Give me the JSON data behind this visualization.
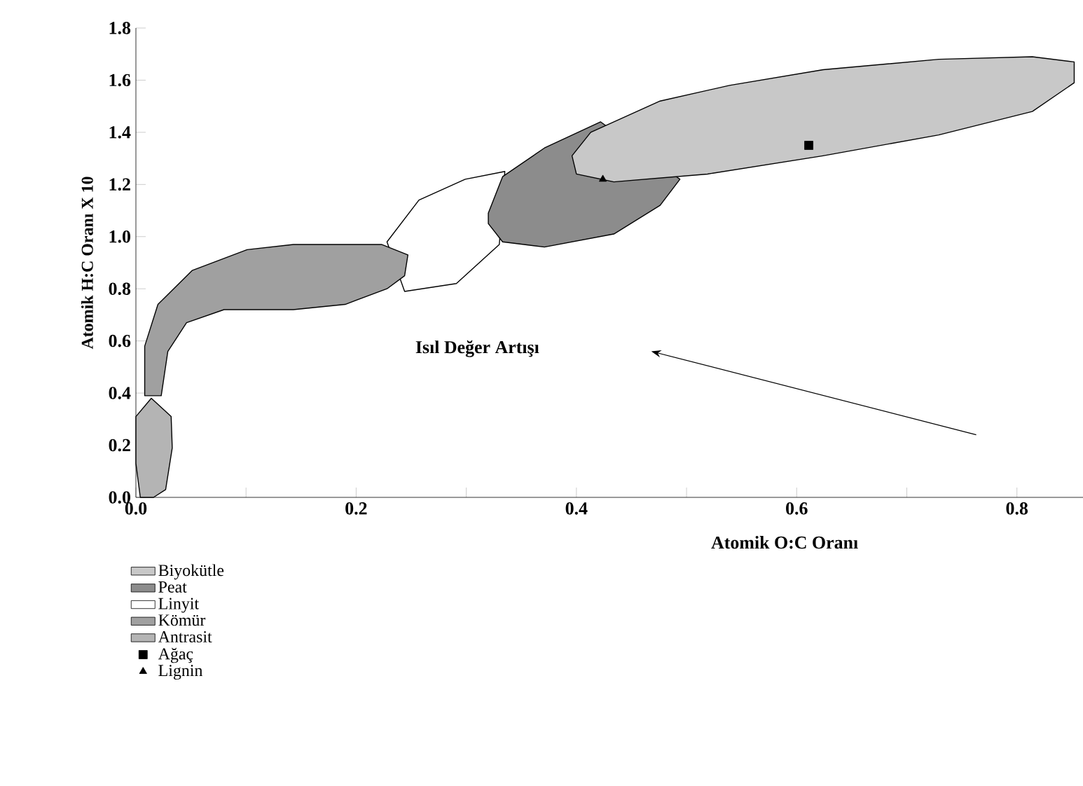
{
  "chart_data": {
    "type": "area",
    "xlabel": "Atomik O:C Oranı",
    "ylabel": "Atomik H:C Oranı X 10",
    "annotations": [
      "Isıl  Değer Artışı"
    ],
    "xlim": [
      0,
      0.86
    ],
    "ylim": [
      0,
      1.8
    ],
    "xticks": [
      {
        "value": 0,
        "label": "0.0"
      },
      {
        "value": 0.1,
        "label": null
      },
      {
        "value": 0.2,
        "label": "0.2"
      },
      {
        "value": 0.3,
        "label": null
      },
      {
        "value": 0.4,
        "label": "0.4"
      },
      {
        "value": 0.5,
        "label": null
      },
      {
        "value": 0.6,
        "label": "0.6"
      },
      {
        "value": 0.7,
        "label": null
      },
      {
        "value": 0.8,
        "label": "0.8"
      }
    ],
    "yticks": [
      {
        "value": 0,
        "label": "0.0"
      },
      {
        "value": 0.2,
        "label": "0.2"
      },
      {
        "value": 0.4,
        "label": "0.4"
      },
      {
        "value": 0.6,
        "label": "0.6"
      },
      {
        "value": 0.8,
        "label": "0.8"
      },
      {
        "value": 1.0,
        "label": "1.0"
      },
      {
        "value": 1.2,
        "label": "1.2"
      },
      {
        "value": 1.4,
        "label": "1.4"
      },
      {
        "value": 1.6,
        "label": "1.6"
      },
      {
        "value": 1.8,
        "label": "1.8"
      }
    ],
    "legend": "bottom left",
    "grid": false,
    "series": [
      {
        "name": "Biyokütle",
        "color": "#c8c8c8",
        "x": [
          0.396,
          0.413,
          0.476,
          0.539,
          0.624,
          0.729,
          0.814,
          0.852,
          0.852,
          0.814,
          0.729,
          0.624,
          0.519,
          0.434,
          0.4
        ],
        "values": [
          1.31,
          1.4,
          1.52,
          1.58,
          1.64,
          1.68,
          1.69,
          1.67,
          1.59,
          1.48,
          1.39,
          1.31,
          1.24,
          1.21,
          1.24
        ]
      },
      {
        "name": "Peat",
        "color": "#8c8c8c",
        "x": [
          0.32,
          0.333,
          0.371,
          0.422,
          0.494,
          0.476,
          0.434,
          0.371,
          0.333,
          0.32
        ],
        "values": [
          1.09,
          1.23,
          1.34,
          1.44,
          1.22,
          1.12,
          1.01,
          0.96,
          0.98,
          1.05
        ]
      },
      {
        "name": "Linyit",
        "color": "#ffffff",
        "x": [
          0.228,
          0.257,
          0.299,
          0.335,
          0.33,
          0.291,
          0.244
        ],
        "values": [
          0.98,
          1.14,
          1.22,
          1.25,
          0.97,
          0.82,
          0.79
        ]
      },
      {
        "name": "Kömür",
        "color": "#a0a0a0",
        "x": [
          0.008,
          0.008,
          0.02,
          0.051,
          0.101,
          0.143,
          0.223,
          0.247,
          0.244,
          0.228,
          0.19,
          0.143,
          0.08,
          0.046,
          0.029,
          0.023
        ],
        "values": [
          0.39,
          0.58,
          0.74,
          0.87,
          0.95,
          0.97,
          0.97,
          0.93,
          0.85,
          0.8,
          0.74,
          0.72,
          0.72,
          0.67,
          0.56,
          0.39
        ]
      },
      {
        "name": "Antrasit",
        "color": "#b4b4b4",
        "x": [
          0.014,
          0.032,
          0.033,
          0.027,
          0.016,
          0.004,
          0.0,
          0.0
        ],
        "values": [
          0.38,
          0.31,
          0.19,
          0.03,
          0.0,
          0.0,
          0.13,
          0.31
        ]
      },
      {
        "name": "Ağaç",
        "type": "scatter",
        "marker": "square",
        "color": "#000000",
        "x": [
          0.611
        ],
        "values": [
          1.35
        ]
      },
      {
        "name": "Lignin",
        "type": "scatter",
        "marker": "triangle",
        "color": "#000000",
        "x": [
          0.424
        ],
        "values": [
          1.22
        ]
      }
    ]
  }
}
